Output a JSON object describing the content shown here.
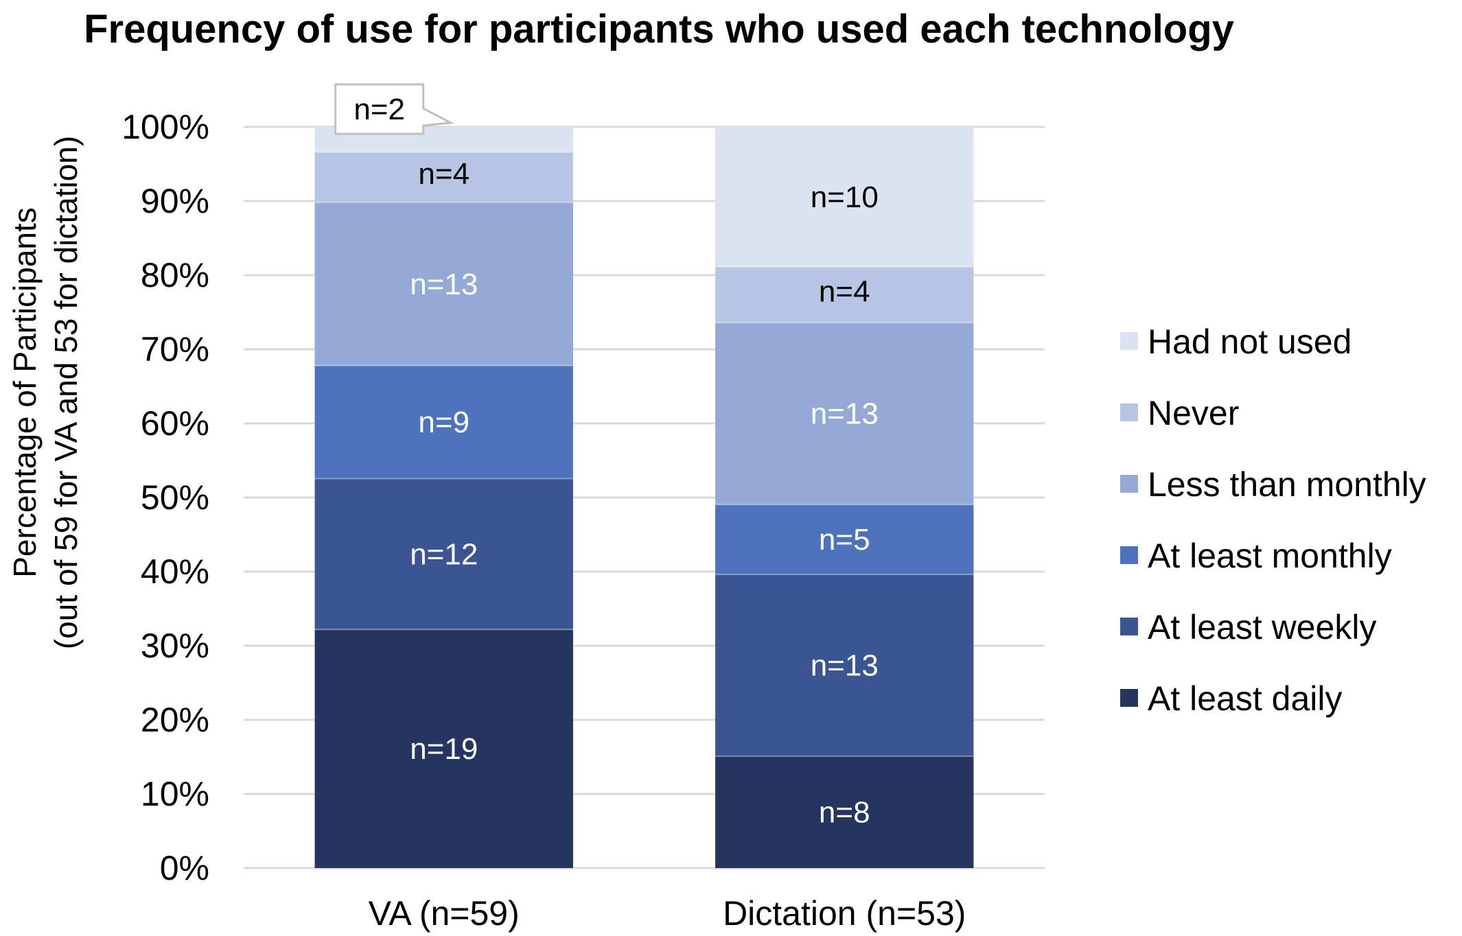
{
  "chart_data": {
    "type": "bar",
    "stacked": true,
    "normalized": true,
    "title": "Frequency of use for participants who used each technology",
    "ylabel_lines": [
      "Percentage of Participants",
      "(out of 59 for VA and 53 for dictation)"
    ],
    "xlabel": "",
    "ylim": [
      0,
      100
    ],
    "y_ticks": [
      "0%",
      "10%",
      "20%",
      "30%",
      "40%",
      "50%",
      "60%",
      "70%",
      "80%",
      "90%",
      "100%"
    ],
    "grid": true,
    "legend_position": "right",
    "categories": [
      "VA (n=59)",
      "Dictation (n=53)"
    ],
    "category_totals": [
      59,
      53
    ],
    "series": [
      {
        "name": "At least daily",
        "color": "#263560",
        "label_color": "#ffffff",
        "counts": [
          19,
          8
        ],
        "labels": [
          "n=19",
          "n=8"
        ]
      },
      {
        "name": "At least weekly",
        "color": "#3a5592",
        "label_color": "#ffffff",
        "counts": [
          12,
          13
        ],
        "labels": [
          "n=12",
          "n=13"
        ]
      },
      {
        "name": "At least monthly",
        "color": "#4e72bd",
        "label_color": "#ffffff",
        "counts": [
          9,
          5
        ],
        "labels": [
          "n=9",
          "n=5"
        ]
      },
      {
        "name": "Less than monthly",
        "color": "#95a9d7",
        "label_color": "#ffffff",
        "counts": [
          13,
          13
        ],
        "labels": [
          "n=13",
          "n=13"
        ]
      },
      {
        "name": "Never",
        "color": "#b8c6e5",
        "label_color": "#000000",
        "counts": [
          4,
          4
        ],
        "labels": [
          "n=4",
          "n=4"
        ]
      },
      {
        "name": "Had not used",
        "color": "#dbe2f0",
        "label_color": "#000000",
        "counts": [
          2,
          10
        ],
        "labels": [
          "n=2",
          "n=10"
        ]
      }
    ]
  }
}
